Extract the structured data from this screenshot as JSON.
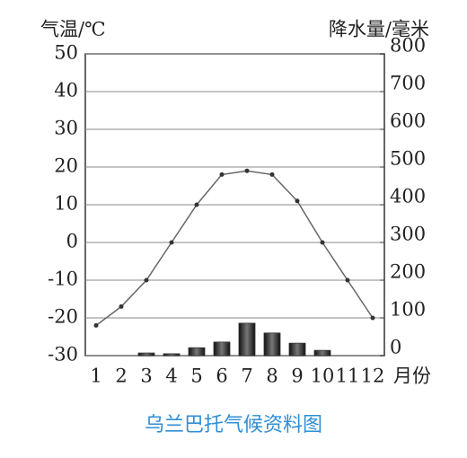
{
  "chart_data": {
    "type": "bar-line",
    "title": "乌兰巴托气候资料图",
    "y_label": "气温/℃",
    "y2_label": "降水量/毫米",
    "x_label": "月份",
    "categories": [
      "1",
      "2",
      "3",
      "4",
      "5",
      "6",
      "7",
      "8",
      "9",
      "10",
      "11",
      "12"
    ],
    "series": [
      {
        "name": "降水量",
        "type": "bar",
        "axis": "y2",
        "color": "#333333",
        "values": [
          0,
          0,
          7,
          5,
          21,
          36,
          86,
          60,
          33,
          14,
          0,
          0
        ]
      },
      {
        "name": "气温",
        "type": "line",
        "axis": "y",
        "color": "#666666",
        "values": [
          -22,
          -17,
          -10,
          0,
          10,
          18,
          19,
          18,
          11,
          0,
          -10,
          -20
        ]
      }
    ],
    "ylim": [
      -30,
      50
    ],
    "yticks": [
      -30,
      -20,
      -10,
      0,
      10,
      20,
      30,
      40,
      50
    ],
    "y2lim": [
      0,
      800
    ],
    "y2ticks": [
      0,
      100,
      200,
      300,
      400,
      500,
      600,
      700,
      800
    ],
    "grid": true
  }
}
